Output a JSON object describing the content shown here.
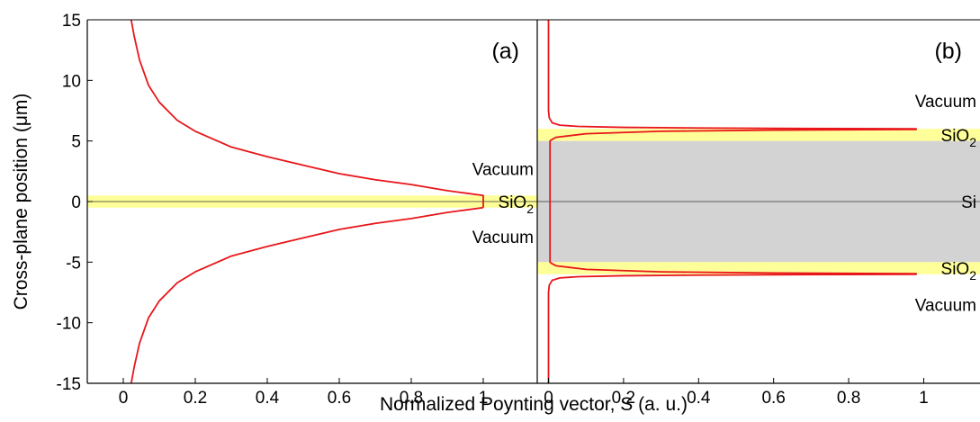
{
  "figure": {
    "xlabel": "Normalized Poynting vector, S (a. u.)",
    "ylabel": "Cross-plane position (μm)",
    "colors": {
      "curve": "#e8161b",
      "sio2": "#ffff99",
      "si": "#d3d3d3",
      "axis": "#000000"
    }
  },
  "chart_data": [
    {
      "type": "line",
      "panel": "(a)",
      "xlabel": "Normalized Poynting vector, S (a. u.)",
      "ylabel": "Cross-plane position (μm)",
      "xlim": [
        -0.1,
        1.15
      ],
      "ylim": [
        -15,
        15
      ],
      "x_ticks": [
        0,
        0.2,
        0.4,
        0.6,
        0.8,
        1
      ],
      "x_tick_labels": [
        "0",
        "0.2",
        "0.4",
        "0.6",
        "0.8",
        "1"
      ],
      "y_ticks": [
        -15,
        -10,
        -5,
        0,
        5,
        10,
        15
      ],
      "y_tick_labels": [
        "-15",
        "-10",
        "-5",
        "0",
        "5",
        "10",
        "15"
      ],
      "grid": false,
      "bands": [
        {
          "material": "SiO2",
          "y_min": -0.5,
          "y_max": 0.5,
          "color": "#ffff99"
        }
      ],
      "region_labels": [
        {
          "text": "Vacuum",
          "y": 2.7
        },
        {
          "sub_text": "2",
          "text": "SiO",
          "y": 0
        },
        {
          "text": "Vacuum",
          "y": -2.9
        }
      ],
      "series": [
        {
          "x": [
            0.022,
            0.03,
            0.045,
            0.07,
            0.1,
            0.15,
            0.2,
            0.3,
            0.4,
            0.5,
            0.6,
            0.7,
            0.8,
            0.9,
            0.95,
            1.0,
            1.0,
            1.0
          ],
          "y": [
            15,
            13.7,
            11.7,
            9.6,
            8.2,
            6.7,
            5.8,
            4.5,
            3.7,
            3.0,
            2.3,
            1.8,
            1.4,
            0.9,
            0.7,
            0.5,
            0,
            -0.5
          ]
        },
        {
          "x": [
            1.0,
            0.95,
            0.9,
            0.8,
            0.7,
            0.6,
            0.5,
            0.4,
            0.3,
            0.2,
            0.15,
            0.1,
            0.07,
            0.045,
            0.03,
            0.022
          ],
          "y": [
            -0.5,
            -0.7,
            -0.9,
            -1.4,
            -1.8,
            -2.3,
            -3.0,
            -3.7,
            -4.5,
            -5.8,
            -6.7,
            -8.2,
            -9.6,
            -11.7,
            -13.7,
            -15
          ]
        }
      ]
    },
    {
      "type": "line",
      "panel": "(b)",
      "xlim": [
        -0.03,
        1.15
      ],
      "ylim": [
        -15,
        15
      ],
      "x_ticks": [
        0,
        0.2,
        0.4,
        0.6,
        0.8,
        1
      ],
      "x_tick_labels": [
        "0",
        "0.2",
        "0.4",
        "0.6",
        "0.8",
        "1"
      ],
      "grid": false,
      "bands": [
        {
          "material": "SiO2",
          "y_min": 5,
          "y_max": 6,
          "color": "#ffff99"
        },
        {
          "material": "Si",
          "y_min": -5,
          "y_max": 5,
          "color": "#d3d3d3"
        },
        {
          "material": "SiO2",
          "y_min": -6,
          "y_max": -5,
          "color": "#ffff99"
        }
      ],
      "region_labels": [
        {
          "text": "Vacuum",
          "y": 8.3
        },
        {
          "sub_text": "2",
          "text": "SiO",
          "y": 5.5
        },
        {
          "text": "Si",
          "y": 0
        },
        {
          "sub_text": "2",
          "text": "SiO",
          "y": -5.5
        },
        {
          "text": "Vacuum",
          "y": -8.5
        }
      ],
      "series": [
        {
          "x": [
            0.0,
            0.0,
            0.002,
            0.01,
            0.03,
            0.08,
            0.2,
            0.4,
            0.6,
            0.8,
            0.98,
            0.98,
            0.6,
            0.3,
            0.1,
            0.02,
            0.008,
            0.004,
            0.004,
            0.004,
            0.008,
            0.02,
            0.1,
            0.3,
            0.6,
            0.98,
            0.98,
            0.8,
            0.6,
            0.4,
            0.2,
            0.08,
            0.03,
            0.01,
            0.002,
            0.0,
            0.0
          ],
          "y": [
            15,
            7.5,
            6.9,
            6.5,
            6.3,
            6.2,
            6.12,
            6.07,
            6.04,
            6.02,
            6.0,
            5.95,
            5.9,
            5.8,
            5.6,
            5.3,
            5.1,
            5.0,
            0,
            -5.0,
            -5.1,
            -5.3,
            -5.6,
            -5.8,
            -5.9,
            -5.95,
            -6.0,
            -6.02,
            -6.04,
            -6.07,
            -6.12,
            -6.2,
            -6.3,
            -6.5,
            -6.9,
            -7.5,
            -15
          ]
        }
      ]
    }
  ]
}
